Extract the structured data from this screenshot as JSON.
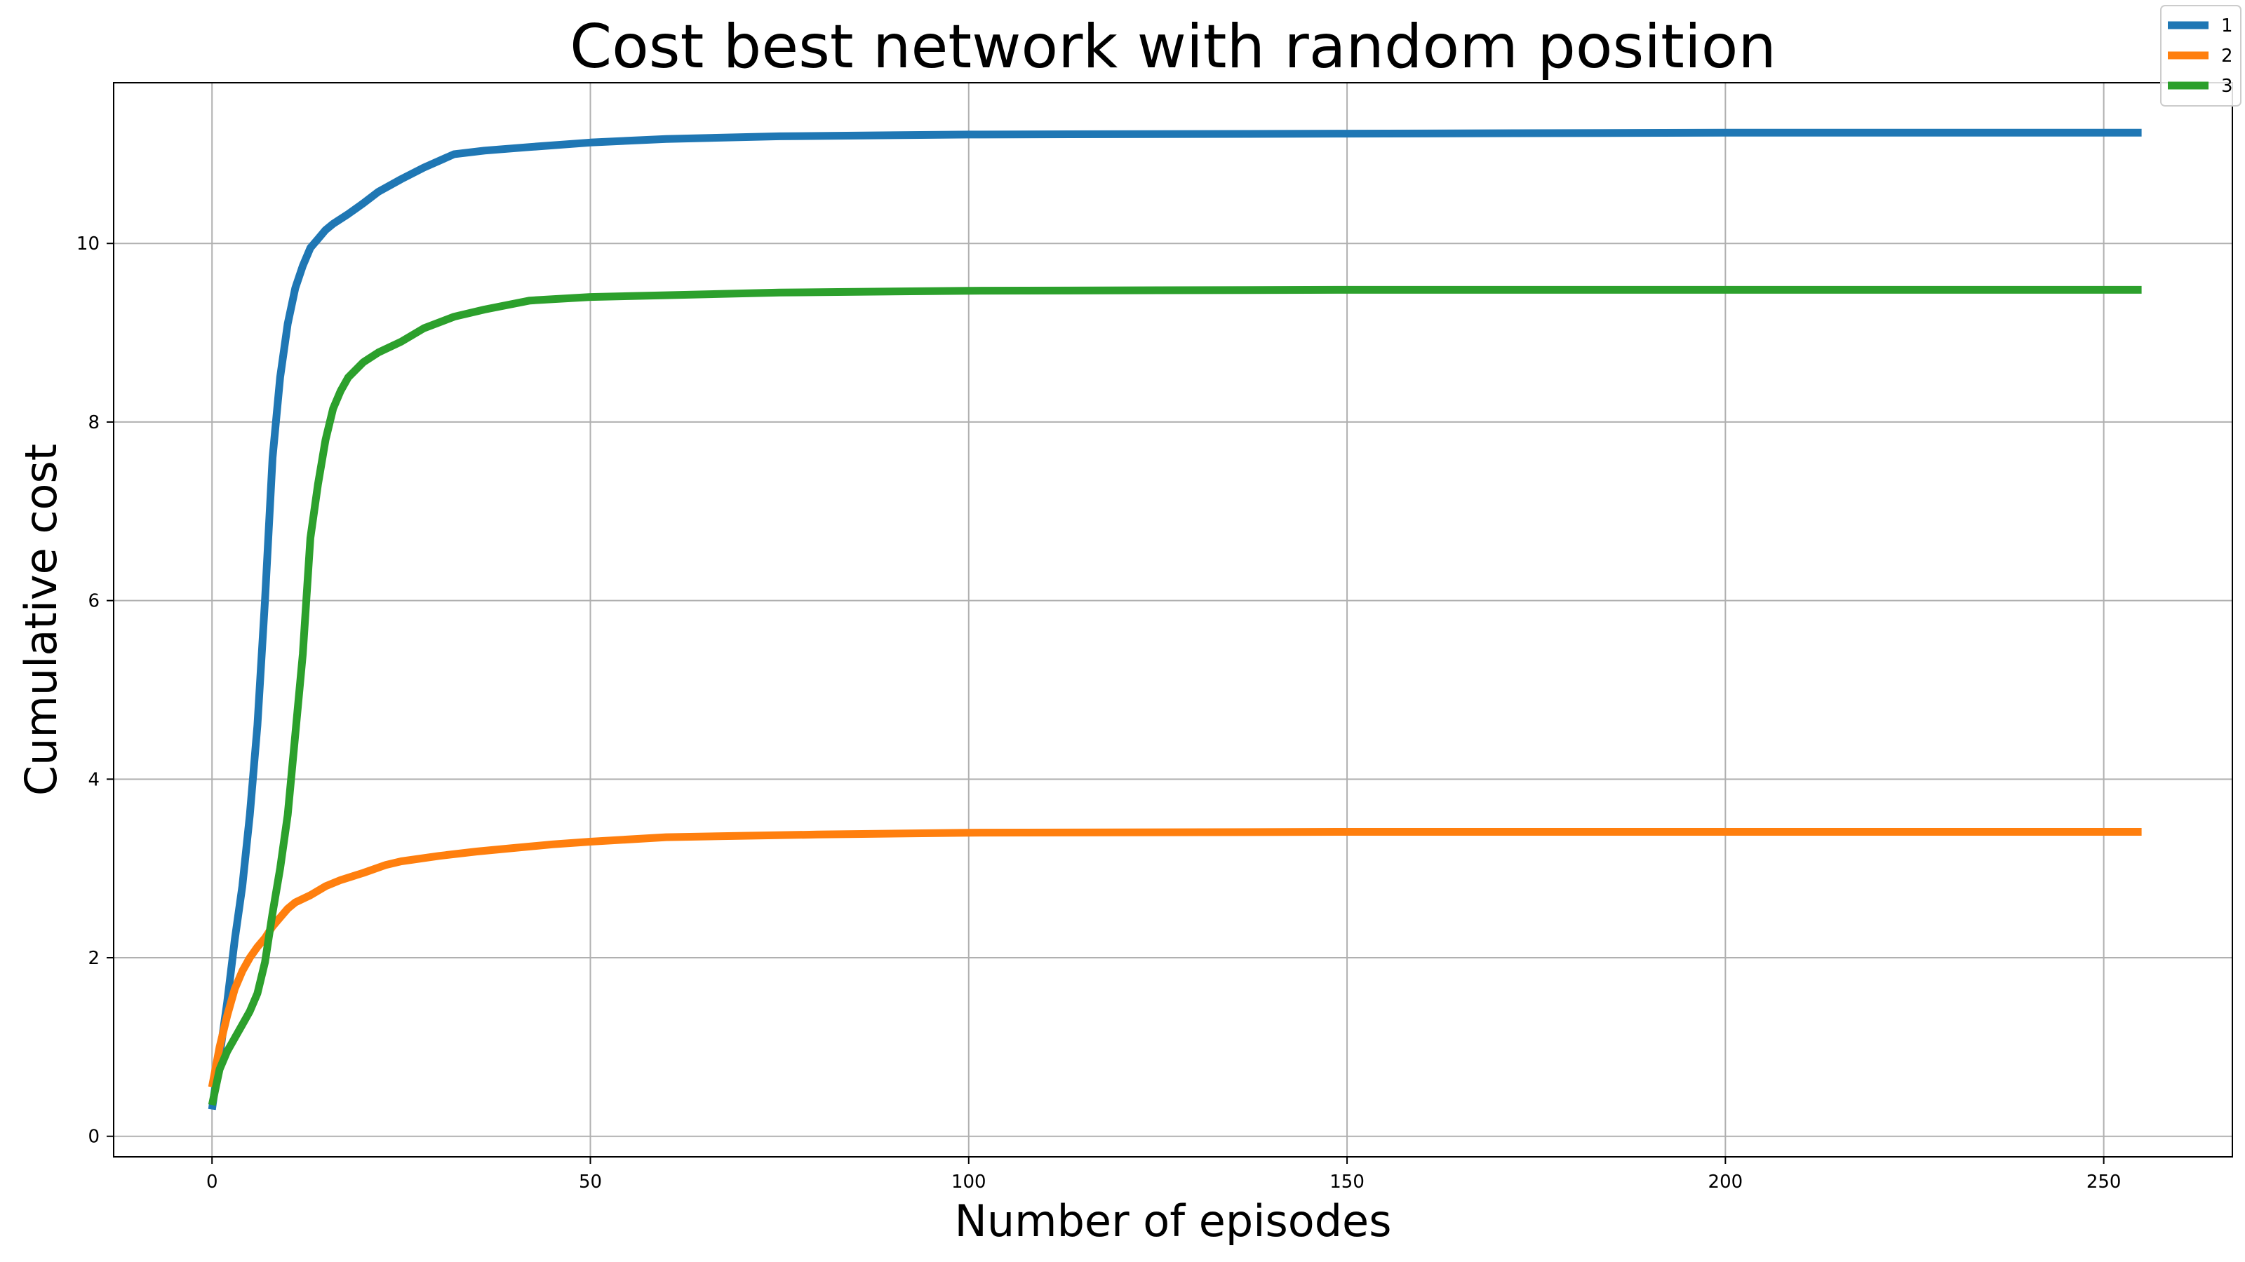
{
  "chart_data": {
    "type": "line",
    "title": "Cost best network with random position",
    "xlabel": "Number of episodes",
    "ylabel": "Cumulative cost",
    "xlim": [
      -13,
      267
    ],
    "ylim": [
      -0.23,
      11.8
    ],
    "xticks": [
      0,
      50,
      100,
      150,
      200,
      250
    ],
    "yticks": [
      0,
      2,
      4,
      6,
      8,
      10
    ],
    "grid": true,
    "legend_position": "top-right",
    "series": [
      {
        "name": "1",
        "color": "#1f77b4",
        "x": [
          0,
          1,
          2,
          3,
          4,
          5,
          6,
          7,
          8,
          9,
          10,
          11,
          12,
          13,
          14,
          15,
          16,
          18,
          20,
          22,
          25,
          28,
          32,
          36,
          42,
          50,
          60,
          75,
          100,
          150,
          200,
          255
        ],
        "y": [
          0.3,
          0.9,
          1.5,
          2.2,
          2.8,
          3.6,
          4.6,
          6.0,
          7.6,
          8.5,
          9.1,
          9.5,
          9.75,
          9.95,
          10.05,
          10.15,
          10.22,
          10.33,
          10.45,
          10.58,
          10.72,
          10.85,
          11.0,
          11.04,
          11.08,
          11.13,
          11.17,
          11.2,
          11.22,
          11.23,
          11.24,
          11.24
        ]
      },
      {
        "name": "2",
        "color": "#ff7f0e",
        "x": [
          0,
          1,
          2,
          3,
          4,
          5,
          6,
          7,
          8,
          9,
          10,
          11,
          13,
          15,
          17,
          20,
          23,
          25,
          30,
          35,
          40,
          45,
          50,
          60,
          80,
          100,
          150,
          200,
          255
        ],
        "y": [
          0.55,
          1.0,
          1.35,
          1.65,
          1.85,
          2.0,
          2.12,
          2.22,
          2.35,
          2.45,
          2.55,
          2.62,
          2.7,
          2.8,
          2.87,
          2.95,
          3.04,
          3.08,
          3.14,
          3.19,
          3.23,
          3.27,
          3.3,
          3.35,
          3.38,
          3.4,
          3.41,
          3.41,
          3.41
        ]
      },
      {
        "name": "3",
        "color": "#2ca02c",
        "x": [
          0,
          1,
          2,
          3,
          4,
          5,
          6,
          7,
          8,
          9,
          10,
          11,
          12,
          13,
          14,
          15,
          16,
          17,
          18,
          20,
          22,
          25,
          28,
          32,
          36,
          42,
          50,
          60,
          75,
          100,
          150,
          200,
          255
        ],
        "y": [
          0.35,
          0.75,
          0.95,
          1.1,
          1.25,
          1.4,
          1.6,
          1.95,
          2.5,
          3.0,
          3.6,
          4.5,
          5.4,
          6.7,
          7.3,
          7.8,
          8.15,
          8.35,
          8.5,
          8.67,
          8.78,
          8.9,
          9.05,
          9.18,
          9.26,
          9.36,
          9.4,
          9.42,
          9.45,
          9.47,
          9.48,
          9.48,
          9.48
        ]
      }
    ]
  }
}
